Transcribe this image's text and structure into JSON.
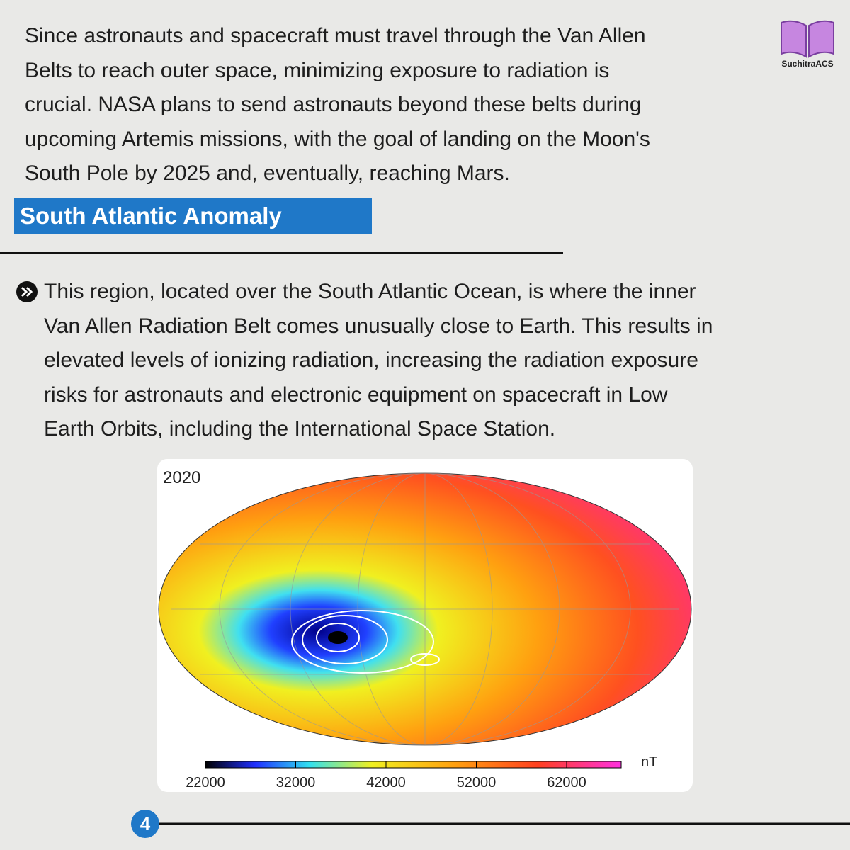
{
  "intro": {
    "lines": [
      "Since astronauts and spacecraft must travel through the Van Allen",
      "Belts to reach outer space, minimizing exposure to radiation is",
      "crucial. NASA plans to send astronauts beyond these belts during",
      "upcoming Artemis missions, with the goal of landing on the Moon's",
      "South Pole by 2025 and, eventually, reaching Mars."
    ]
  },
  "logo": {
    "label": "SuchitraACS"
  },
  "section": {
    "heading": "South Atlantic Anomaly",
    "bullet": {
      "lines": [
        "This region, located over the South Atlantic Ocean, is where the inner",
        "Van Allen Radiation Belt comes unusually close to Earth. This results in",
        "elevated levels of ionizing radiation, increasing the radiation exposure",
        "risks for astronauts and electronic equipment on spacecraft in Low",
        "Earth Orbits, including the International Space Station."
      ]
    }
  },
  "figure": {
    "year": "2020",
    "colorbar": {
      "unit": "nT",
      "ticks": [
        "22000",
        "32000",
        "42000",
        "52000",
        "62000"
      ]
    }
  },
  "footer": {
    "page": "4"
  }
}
